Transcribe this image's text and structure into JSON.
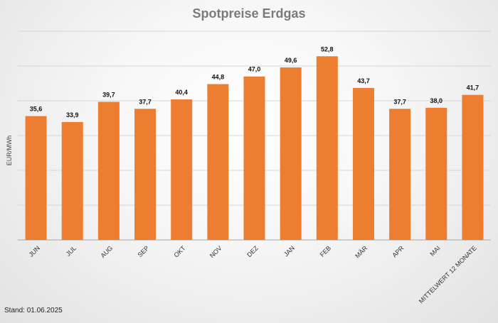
{
  "chart_data": {
    "type": "bar",
    "title": "Spotpreise Erdgas",
    "ylabel": "EUR/MWh",
    "xlabel": "",
    "categories": [
      "JUN",
      "JUL",
      "AUG",
      "SEP",
      "OKT",
      "NOV",
      "DEZ",
      "JAN",
      "FEB",
      "MÄR",
      "APR",
      "MAI",
      "MITTELWERT 12 MONATE"
    ],
    "values": [
      35.6,
      33.9,
      39.7,
      37.7,
      40.4,
      44.8,
      47.0,
      49.6,
      52.8,
      43.7,
      37.7,
      38.0,
      41.7
    ],
    "value_labels": [
      "35,6",
      "33,9",
      "39,7",
      "37,7",
      "40,4",
      "44,8",
      "47,0",
      "49,6",
      "52,8",
      "43,7",
      "37,7",
      "38,0",
      "41,7"
    ],
    "ylim": [
      0,
      60
    ],
    "y_gridlines": [
      10,
      20,
      30,
      40,
      50,
      60
    ],
    "grid": true,
    "legend": "none",
    "bar_color": "#ed7d31",
    "footnote": "Stand: 01.06.2025"
  }
}
